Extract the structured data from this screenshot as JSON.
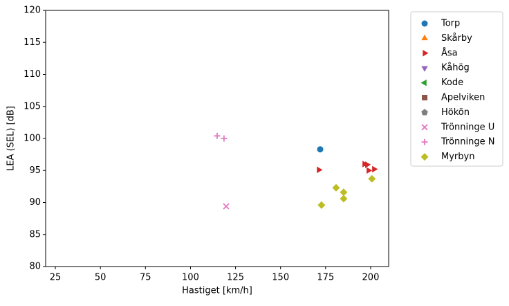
{
  "chart_data": {
    "type": "scatter",
    "x_label": "Hastiget [km/h]",
    "y_label": "LEA (SEL) [dB]",
    "xlim": [
      19.6,
      210
    ],
    "xticks": [
      25,
      50,
      75,
      100,
      125,
      150,
      175,
      200
    ],
    "ylim": [
      80,
      120
    ],
    "yticks": [
      80,
      85,
      90,
      95,
      100,
      105,
      110,
      115,
      120
    ],
    "legend": "outside-upper-right",
    "series": [
      {
        "name": "Torp",
        "color": "#1f77b4",
        "marker": "circle",
        "x": [
          172
        ],
        "values": [
          98.3
        ]
      },
      {
        "name": "Skårby",
        "color": "#ff7f0e",
        "marker": "triangle-up",
        "x": [],
        "values": []
      },
      {
        "name": "Åsa",
        "color": "#d62728",
        "marker": "triangle-right",
        "x": [
          171.2,
          196.5,
          198,
          198.8,
          201.9
        ],
        "values": [
          95.1,
          96.0,
          95.9,
          95.0,
          95.2
        ]
      },
      {
        "name": "Kåhög",
        "color": "#9467bd",
        "marker": "triangle-down",
        "x": [],
        "values": []
      },
      {
        "name": "Kode",
        "color": "#2ca02c",
        "marker": "triangle-left",
        "x": [],
        "values": []
      },
      {
        "name": "Apelviken",
        "color": "#8c564b",
        "marker": "square",
        "x": [],
        "values": []
      },
      {
        "name": "Hökön",
        "color": "#7f7f7f",
        "marker": "pentagon",
        "x": [],
        "values": []
      },
      {
        "name": "Trönninge U",
        "color": "#e377c2",
        "marker": "x",
        "x": [
          119.8
        ],
        "values": [
          89.4
        ]
      },
      {
        "name": "Trönninge N",
        "color": "#e377c2",
        "marker": "plus",
        "x": [
          114.8,
          118.6
        ],
        "values": [
          100.4,
          100.0
        ]
      },
      {
        "name": "Myrbyn",
        "color": "#bcbd22",
        "marker": "diamond",
        "x": [
          172.7,
          180.8,
          185,
          185,
          200.7
        ],
        "values": [
          89.6,
          92.3,
          91.6,
          90.6,
          93.7
        ]
      }
    ]
  }
}
